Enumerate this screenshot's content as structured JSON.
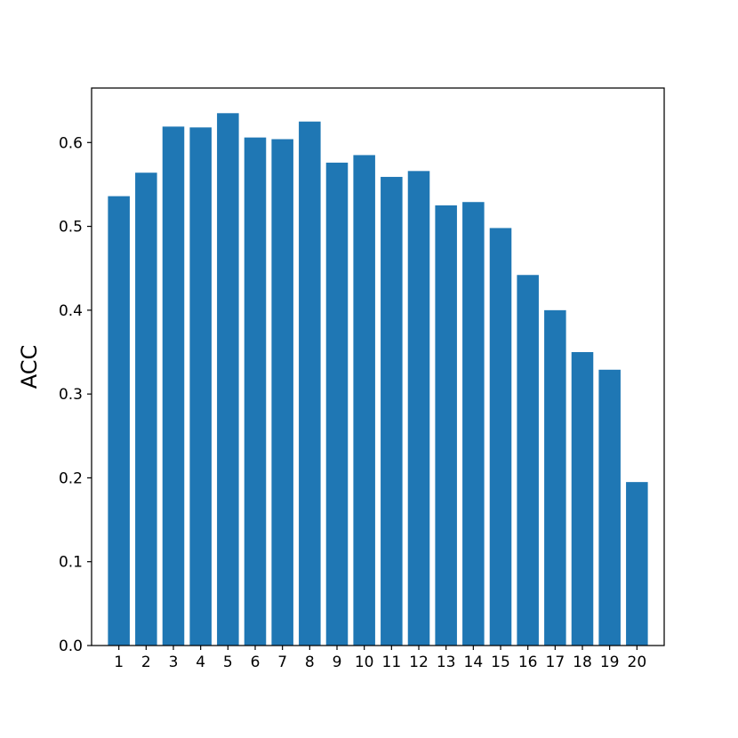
{
  "chart_data": {
    "type": "bar",
    "categories": [
      "1",
      "2",
      "3",
      "4",
      "5",
      "6",
      "7",
      "8",
      "9",
      "10",
      "11",
      "12",
      "13",
      "14",
      "15",
      "16",
      "17",
      "18",
      "19",
      "20"
    ],
    "values": [
      0.536,
      0.564,
      0.619,
      0.618,
      0.635,
      0.606,
      0.604,
      0.625,
      0.576,
      0.585,
      0.559,
      0.566,
      0.525,
      0.529,
      0.498,
      0.442,
      0.4,
      0.35,
      0.329,
      0.195
    ],
    "title": "",
    "xlabel": "",
    "ylabel": "ACC",
    "ylim": [
      0,
      0.665
    ],
    "yticks": [
      "0.0",
      "0.1",
      "0.2",
      "0.3",
      "0.4",
      "0.5",
      "0.6"
    ],
    "grid": false,
    "bar_color": "#1f77b4"
  }
}
